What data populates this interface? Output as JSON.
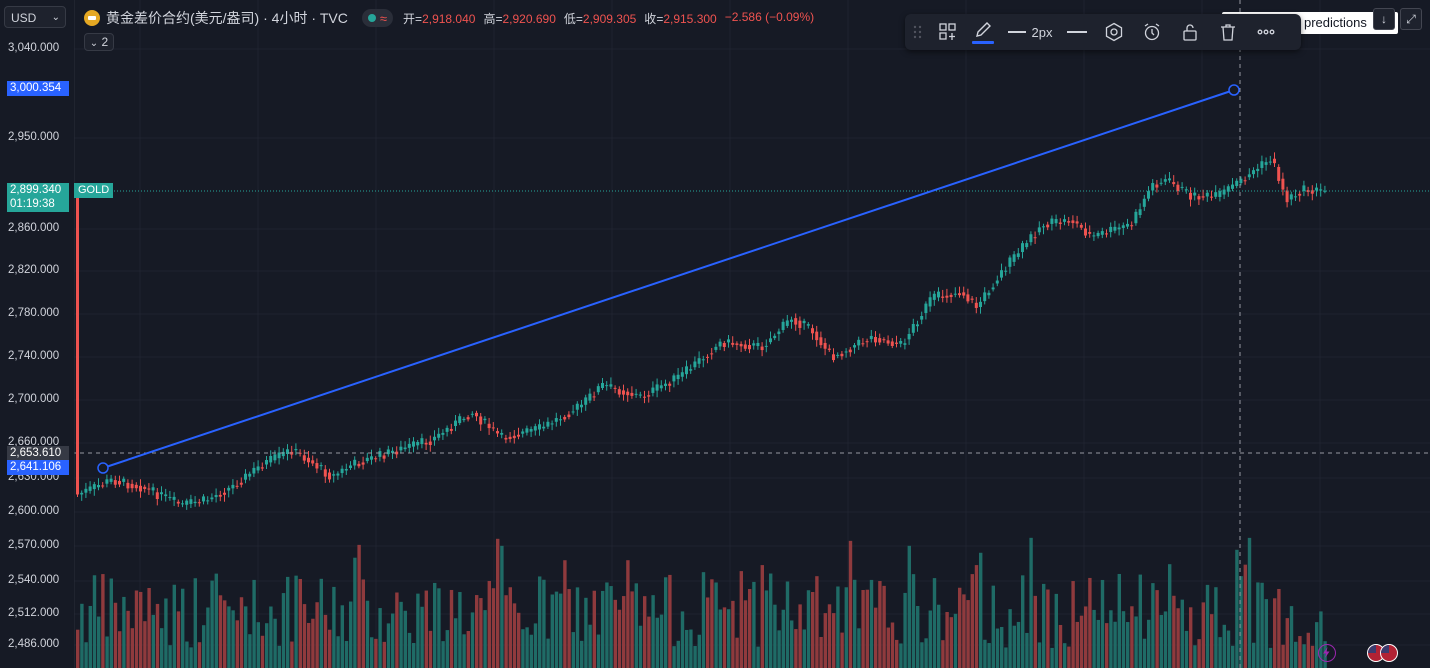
{
  "currency_select": {
    "label": "USD"
  },
  "collapse_button": {
    "label": "2"
  },
  "symbol": {
    "title": "黄金差价合约(美元/盎司) · 4小时 · TVC",
    "status_icon": "market-open-dot",
    "ohlc": [
      {
        "key": "开",
        "value": "2,918.040"
      },
      {
        "key": "高",
        "value": "2,920.690"
      },
      {
        "key": "低",
        "value": "2,909.305"
      },
      {
        "key": "收",
        "value": "2,915.300"
      }
    ],
    "change": "−2.586 (−0.09%)"
  },
  "drawing_toolbar": {
    "items": [
      "drag-handle-icon",
      "templates-icon",
      "pencil-icon",
      "line-style-icon",
      "line-width",
      "line-dash-icon",
      "settings-icon",
      "alert-icon",
      "lock-icon",
      "delete-icon",
      "more-icon"
    ],
    "line_width_label": "2px"
  },
  "predictions_label": "predictions",
  "price_axis": {
    "labels": [
      "3,040.000",
      "2,950.000",
      "2,860.000",
      "2,820.000",
      "2,780.000",
      "2,740.000",
      "2,700.000",
      "2,660.000",
      "2,630.000",
      "2,600.000",
      "2,570.000",
      "2,540.000",
      "2,512.000",
      "2,486.000"
    ],
    "tags": {
      "line_end": "3,000.354",
      "gold_price": "2,899.340",
      "countdown": "01:19:38",
      "gold_symbol": "GOLD",
      "crosshair": "2,653.610",
      "line_start": "2,641.106"
    }
  },
  "colors": {
    "up": "#26a69a",
    "down": "#ef5350",
    "line": "#2962ff",
    "background": "#161a25"
  },
  "bottom_icons": [
    "lightning-icon",
    "us-flag-icon"
  ]
}
